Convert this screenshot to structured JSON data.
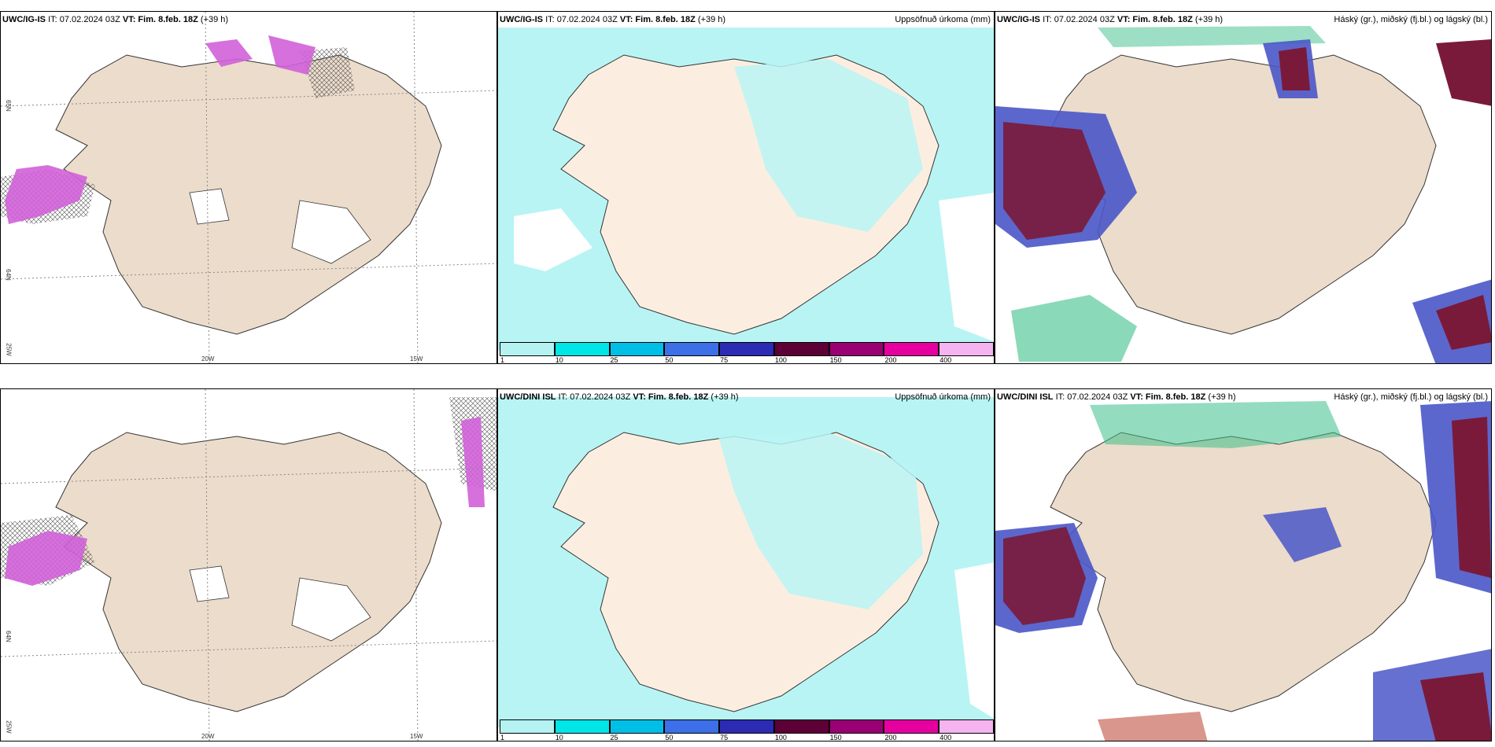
{
  "rows": [
    {
      "panels": [
        {
          "model": "UWC/IG-IS",
          "it": "IT: 07.02.2024 03Z",
          "vt_label": "VT:",
          "vt": "Fim. 8.feb. 18Z",
          "lead": "(+39 h)",
          "right": ""
        },
        {
          "model": "UWC/IG-IS",
          "it": "IT: 07.02.2024 03Z",
          "vt_label": "VT:",
          "vt": "Fim. 8.feb. 18Z",
          "lead": "(+39 h)",
          "right": "Uppsöfnuð úrkoma (mm)"
        },
        {
          "model": "UWC/IG-IS",
          "it": "IT: 07.02.2024 03Z",
          "vt_label": "VT:",
          "vt": "Fim. 8.feb. 18Z",
          "lead": "(+39 h)",
          "right": "Háský (gr.), miðský (fj.bl.) og lágský (bl.)"
        }
      ]
    },
    {
      "panels": [
        {
          "model": "",
          "it": "",
          "vt_label": "",
          "vt": "",
          "lead": "",
          "right": ""
        },
        {
          "model": "UWC/DINI ISL",
          "it": "IT: 07.02.2024 03Z",
          "vt_label": "VT:",
          "vt": "Fim. 8.feb. 18Z",
          "lead": "(+39 h)",
          "right": "Uppsöfnuð úrkoma (mm)"
        },
        {
          "model": "UWC/DINI ISL",
          "it": "IT: 07.02.2024 03Z",
          "vt_label": "VT:",
          "vt": "Fim. 8.feb. 18Z",
          "lead": "(+39 h)",
          "right": "Háský (gr.), miðský (fj.bl.) og lágský (bl.)"
        }
      ]
    }
  ],
  "axis_labels": {
    "w20": "20W",
    "w15": "15W",
    "w25": "25W",
    "n65": "65N",
    "n64": "64N"
  },
  "colorbar": {
    "ticks": [
      "1",
      "10",
      "25",
      "50",
      "75",
      "100",
      "150",
      "200",
      "400"
    ],
    "colors": [
      "#b5f3f3",
      "#00e5e5",
      "#00bfe6",
      "#3d6fe6",
      "#2b2bb3",
      "#5c0036",
      "#990073",
      "#e600a0",
      "#f5b3f0"
    ]
  },
  "colors": {
    "land": "#ecdccb",
    "land_precip": "#fbeee0",
    "sea_precip": "#b8f4f4",
    "magenta": "#d060d8",
    "low_cloud": "#4a57c8",
    "mid_cloud": "#7a1a3a",
    "high_cloud": "#3cc08a"
  }
}
